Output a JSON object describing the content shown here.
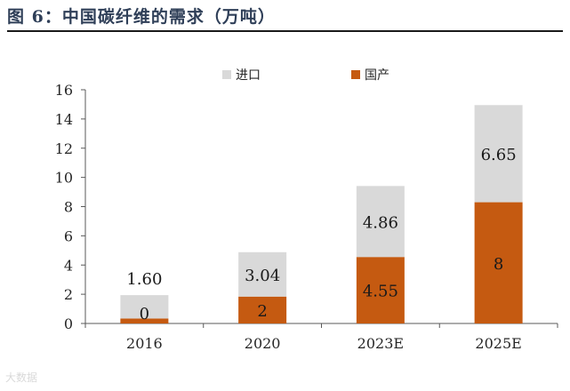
{
  "figure_title": "图 6：中国碳纤维的需求（万吨）",
  "watermark": "大数据",
  "colors": {
    "import": "#d9d9d9",
    "domestic": "#c55a11",
    "title": "#2f3f58",
    "axis": "#595959"
  },
  "chart_data": {
    "type": "bar",
    "stacked": true,
    "categories": [
      "2016",
      "2020",
      "2023E",
      "2025E"
    ],
    "series": [
      {
        "name": "国产",
        "values": [
          0.34,
          1.84,
          4.55,
          8.3
        ],
        "labels": [
          "0",
          "2",
          "4.55",
          "8"
        ]
      },
      {
        "name": "进口",
        "values": [
          1.6,
          3.04,
          4.86,
          6.65
        ],
        "labels": [
          "1.60",
          "3.04",
          "4.86",
          "6.65"
        ]
      }
    ],
    "legend_order": [
      "进口",
      "国产"
    ],
    "legend_position": "top",
    "yticks": [
      "0",
      "2",
      "4",
      "6",
      "8",
      "10",
      "12",
      "14",
      "16"
    ],
    "ylim": [
      0,
      16
    ],
    "grid": false
  }
}
